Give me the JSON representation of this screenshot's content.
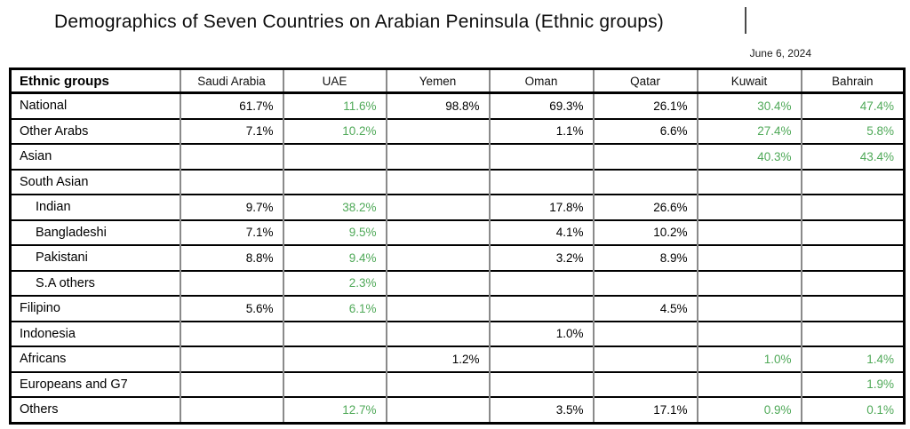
{
  "title": "Demographics of Seven Countries on Arabian Peninsula (Ethnic groups)",
  "date": "June 6, 2024",
  "colors": {
    "highlight_green": "#4fa958"
  },
  "table": {
    "header": [
      "Ethnic groups",
      "Saudi Arabia",
      "UAE",
      "Yemen",
      "Oman",
      "Qatar",
      "Kuwait",
      "Bahrain"
    ],
    "green_columns": [
      "UAE",
      "Kuwait",
      "Bahrain"
    ],
    "green_value_columns": [
      1,
      5,
      6
    ],
    "rows": [
      {
        "label": "National",
        "indent": false,
        "values": [
          "61.7%",
          "11.6%",
          "98.8%",
          "69.3%",
          "26.1%",
          "30.4%",
          "47.4%"
        ]
      },
      {
        "label": "Other Arabs",
        "indent": false,
        "values": [
          "7.1%",
          "10.2%",
          "",
          "1.1%",
          "6.6%",
          "27.4%",
          "5.8%"
        ]
      },
      {
        "label": "Asian",
        "indent": false,
        "values": [
          "",
          "",
          "",
          "",
          "",
          "40.3%",
          "43.4%"
        ]
      },
      {
        "label": "South Asian",
        "indent": false,
        "values": [
          "",
          "",
          "",
          "",
          "",
          "",
          ""
        ]
      },
      {
        "label": "Indian",
        "indent": true,
        "values": [
          "9.7%",
          "38.2%",
          "",
          "17.8%",
          "26.6%",
          "",
          ""
        ]
      },
      {
        "label": "Bangladeshi",
        "indent": true,
        "values": [
          "7.1%",
          "9.5%",
          "",
          "4.1%",
          "10.2%",
          "",
          ""
        ]
      },
      {
        "label": "Pakistani",
        "indent": true,
        "values": [
          "8.8%",
          "9.4%",
          "",
          "3.2%",
          "8.9%",
          "",
          ""
        ]
      },
      {
        "label": "S.A others",
        "indent": true,
        "values": [
          "",
          "2.3%",
          "",
          "",
          "",
          "",
          ""
        ]
      },
      {
        "label": "Filipino",
        "indent": false,
        "values": [
          "5.6%",
          "6.1%",
          "",
          "",
          "4.5%",
          "",
          ""
        ]
      },
      {
        "label": "Indonesia",
        "indent": false,
        "values": [
          "",
          "",
          "",
          "1.0%",
          "",
          "",
          ""
        ]
      },
      {
        "label": "Africans",
        "indent": false,
        "values": [
          "",
          "",
          "1.2%",
          "",
          "",
          "1.0%",
          "1.4%"
        ]
      },
      {
        "label": "Europeans and G7",
        "indent": false,
        "values": [
          "",
          "",
          "",
          "",
          "",
          "",
          "1.9%"
        ]
      },
      {
        "label": "Others",
        "indent": false,
        "values": [
          "",
          "12.7%",
          "",
          "3.5%",
          "17.1%",
          "0.9%",
          "0.1%"
        ]
      }
    ]
  }
}
